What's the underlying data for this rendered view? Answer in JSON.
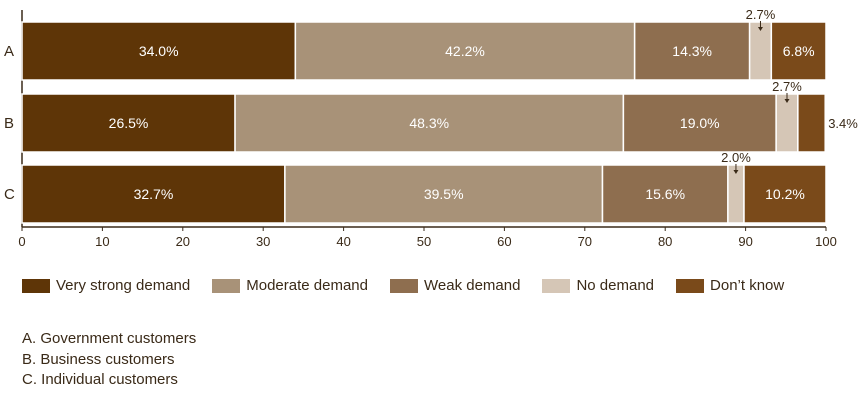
{
  "chart_data": {
    "type": "bar",
    "orientation": "horizontal",
    "stacked": true,
    "categories": [
      "A",
      "B",
      "C"
    ],
    "series": [
      {
        "name": "Very strong demand",
        "color": "#5e3507",
        "values": [
          34.0,
          26.5,
          32.7
        ],
        "labels": [
          "34.0%",
          "26.5%",
          "32.7%"
        ]
      },
      {
        "name": "Moderate demand",
        "color": "#a89278",
        "values": [
          42.2,
          48.3,
          39.5
        ],
        "labels": [
          "42.2%",
          "48.3%",
          "39.5%"
        ]
      },
      {
        "name": "Weak demand",
        "color": "#8e6e4f",
        "values": [
          14.3,
          19.0,
          15.6
        ],
        "labels": [
          "14.3%",
          "19.0%",
          "15.6%"
        ]
      },
      {
        "name": "No demand",
        "color": "#d5c6b6",
        "values": [
          2.7,
          2.7,
          2.0
        ],
        "labels": [
          "2.7%",
          "2.7%",
          "2.0%"
        ]
      },
      {
        "name": "Don’t know",
        "color": "#7a4a1a",
        "values": [
          6.8,
          3.4,
          10.2
        ],
        "labels": [
          "6.8%",
          "3.4%",
          "10.2%"
        ]
      }
    ],
    "xlim": [
      0,
      100
    ],
    "xticks": [
      0,
      10,
      20,
      30,
      40,
      50,
      60,
      70,
      80,
      90,
      100
    ],
    "legend_position": "bottom",
    "grid": false
  },
  "notes": [
    "A. Government customers",
    "B. Business customers",
    "C. Individual customers"
  ]
}
